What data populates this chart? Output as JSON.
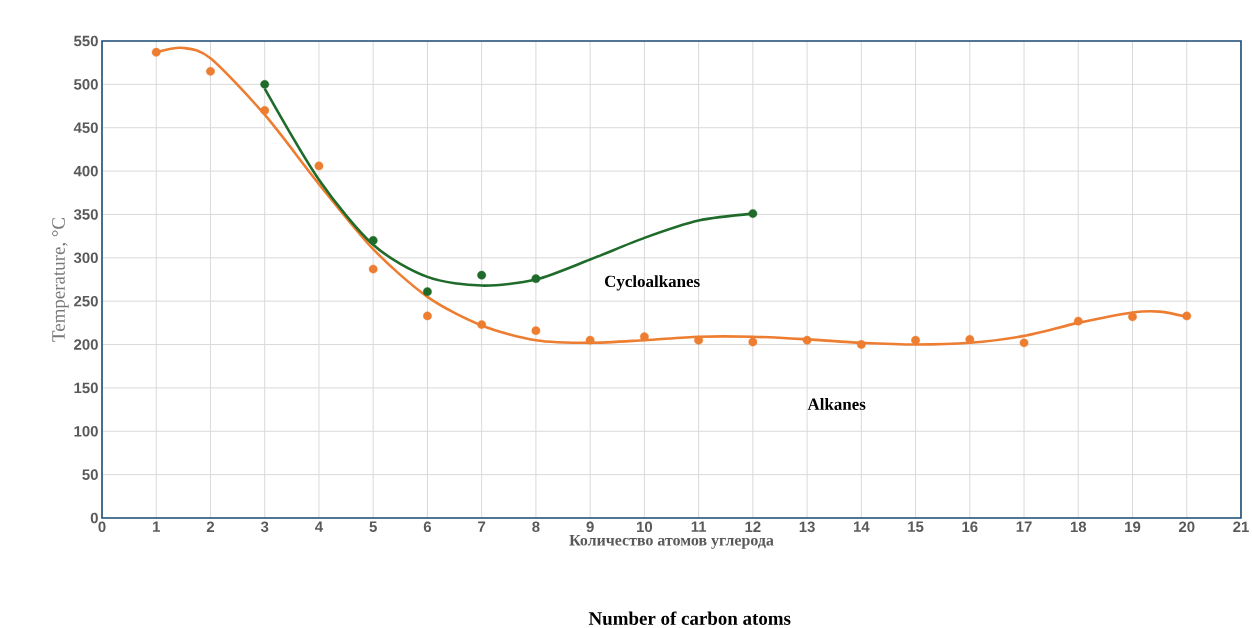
{
  "chart_data": {
    "type": "scatter",
    "xlabel": "Количество атомов углерода",
    "ylabel": "Temperature, °C",
    "xlim": [
      0,
      21
    ],
    "xticks": [
      0,
      1,
      2,
      3,
      4,
      5,
      6,
      7,
      8,
      9,
      10,
      11,
      12,
      13,
      14,
      15,
      16,
      17,
      18,
      19,
      20,
      21
    ],
    "ylim": [
      0,
      550
    ],
    "yticks": [
      0,
      50,
      100,
      150,
      200,
      250,
      300,
      350,
      400,
      450,
      500,
      550
    ],
    "grid": true,
    "series": [
      {
        "type": "line",
        "color": "#ed7d31",
        "marker": "none",
        "x": [
          1,
          1.5,
          2,
          3,
          4,
          5,
          6,
          7,
          8,
          9,
          10,
          11,
          12,
          13,
          14,
          15,
          16,
          17,
          18,
          19,
          19.5,
          20
        ],
        "values": [
          537,
          542,
          530,
          465,
          385,
          310,
          255,
          222,
          205,
          202,
          205,
          209,
          209,
          206,
          202,
          200,
          202,
          210,
          225,
          237,
          238,
          232
        ]
      },
      {
        "type": "line",
        "color": "#1e6b2a",
        "marker": "none",
        "x": [
          3,
          4,
          5,
          6,
          7,
          8,
          9,
          10,
          11,
          12
        ],
        "values": [
          495,
          390,
          315,
          278,
          268,
          275,
          298,
          323,
          343,
          351
        ]
      },
      {
        "color": "#ed7d31",
        "marker": "circle",
        "x": [
          1,
          2,
          3,
          4,
          5,
          6,
          7,
          8,
          9,
          10,
          11,
          12,
          13,
          14,
          15,
          16,
          17,
          18,
          19,
          20
        ],
        "values": [
          537,
          515,
          470,
          406,
          287,
          233,
          223,
          216,
          205,
          209,
          205,
          203,
          205,
          200,
          205,
          206,
          202,
          227,
          232,
          233
        ]
      },
      {
        "color": "#1e6b2a",
        "marker": "circle",
        "x": [
          3,
          5,
          6,
          7,
          8,
          12
        ],
        "values": [
          500,
          320,
          261,
          280,
          276,
          351
        ]
      }
    ],
    "annotations": [
      "Cycloalkanes",
      "Alkanes",
      "Number of carbon atoms"
    ]
  }
}
